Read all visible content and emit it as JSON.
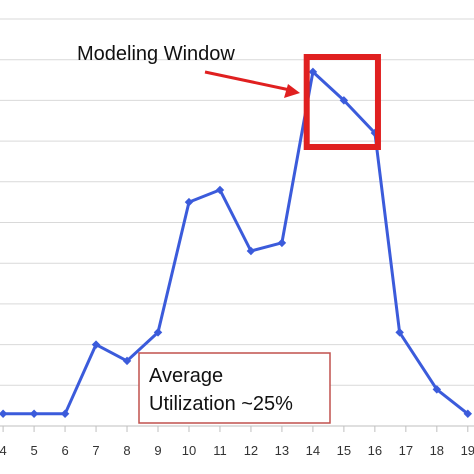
{
  "chart_data": {
    "type": "line",
    "x": [
      4,
      5,
      6,
      7,
      8,
      9,
      10,
      11,
      12,
      13,
      14,
      15,
      16,
      17,
      18,
      19
    ],
    "tick_labels": [
      "4",
      "5",
      "6",
      "7",
      "8",
      "9",
      "10",
      "11",
      "12",
      "13",
      "14",
      "15",
      "16",
      "17",
      "18",
      "19"
    ],
    "series": [
      {
        "x": [
          4,
          5,
          6,
          7,
          8,
          9,
          10,
          11,
          12,
          13,
          14,
          15,
          16,
          16.8,
          18,
          19
        ],
        "values": [
          3,
          3,
          3,
          20,
          16,
          23,
          55,
          58,
          43,
          45,
          87,
          80,
          72,
          23,
          9,
          3
        ]
      }
    ],
    "xlim": [
      3.9,
      19.2
    ],
    "ylim": [
      0,
      100
    ],
    "grid": true,
    "line_color": "#3b5bdb",
    "annotations": [
      {
        "text": "Modeling Window",
        "highlight_range": [
          13.8,
          16.1
        ],
        "highlight_color": "#e02020"
      },
      {
        "line1": "Average",
        "line2": "Utilization  ~25%",
        "border_color": "#c0504d"
      }
    ]
  }
}
